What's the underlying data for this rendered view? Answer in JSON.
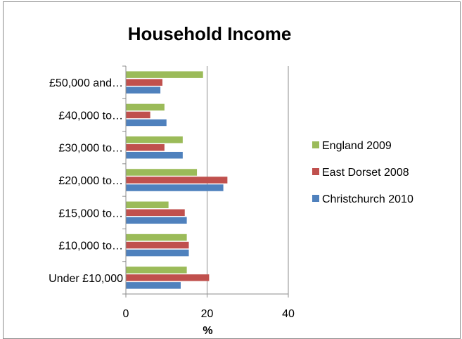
{
  "chart_data": {
    "type": "bar",
    "orientation": "horizontal",
    "title": "Household Income",
    "xlabel": "%",
    "ylabel": "",
    "xlim": [
      0,
      40
    ],
    "xticks": [
      "0",
      "20",
      "40"
    ],
    "grid": "vertical",
    "legend_position": "right",
    "categories": [
      "£50,000 and…",
      "£40,000 to…",
      "£30,000 to…",
      "£20,000 to…",
      "£15,000 to…",
      "£10,000 to…",
      "Under £10,000"
    ],
    "series": [
      {
        "name": "England 2009",
        "color": "#9bbb59",
        "values": [
          19,
          9.5,
          14,
          17.5,
          10.5,
          15,
          15
        ]
      },
      {
        "name": "East Dorset 2008",
        "color": "#c0504d",
        "values": [
          9,
          6,
          9.5,
          25,
          14.5,
          15.5,
          20.5
        ]
      },
      {
        "name": "Christchurch 2010",
        "color": "#4f81bd",
        "values": [
          8.5,
          10,
          14,
          24,
          15,
          15.5,
          13.5
        ]
      }
    ]
  }
}
